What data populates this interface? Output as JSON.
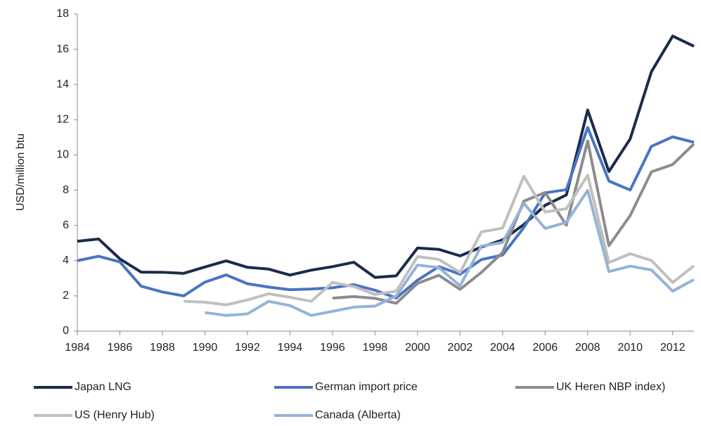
{
  "chart_data": {
    "type": "line",
    "y_label": "USD/million btu",
    "x": [
      1984,
      1985,
      1986,
      1987,
      1988,
      1989,
      1990,
      1991,
      1992,
      1993,
      1994,
      1995,
      1996,
      1997,
      1998,
      1999,
      2000,
      2001,
      2002,
      2003,
      2004,
      2005,
      2006,
      2007,
      2008,
      2009,
      2010,
      2011,
      2012,
      2013
    ],
    "series": [
      {
        "name": "Japan LNG",
        "color": "#1c2b4a",
        "values": [
          5.1,
          5.23,
          4.1,
          3.35,
          3.34,
          3.28,
          3.64,
          3.99,
          3.62,
          3.52,
          3.18,
          3.46,
          3.66,
          3.91,
          3.05,
          3.14,
          4.72,
          4.64,
          4.27,
          4.77,
          5.18,
          6.05,
          7.14,
          7.73,
          12.55,
          9.06,
          10.91,
          14.73,
          16.75,
          16.17
        ]
      },
      {
        "name": "German import price",
        "color": "#4a74c2",
        "values": [
          4.0,
          4.25,
          3.93,
          2.55,
          2.22,
          2.0,
          2.78,
          3.19,
          2.69,
          2.5,
          2.35,
          2.39,
          2.46,
          2.64,
          2.32,
          1.88,
          2.89,
          3.66,
          3.23,
          4.06,
          4.32,
          5.88,
          7.85,
          8.03,
          11.56,
          8.52,
          8.01,
          10.49,
          11.03,
          10.72
        ]
      },
      {
        "name": "UK Heren NBP index)",
        "color": "#8c8c8c",
        "values": [
          null,
          null,
          null,
          null,
          null,
          null,
          null,
          null,
          null,
          null,
          null,
          null,
          1.87,
          1.96,
          1.86,
          1.58,
          2.71,
          3.17,
          2.37,
          3.33,
          4.46,
          7.38,
          7.87,
          6.01,
          10.79,
          4.85,
          6.56,
          9.04,
          9.46,
          10.63
        ]
      },
      {
        "name": "US (Henry Hub)",
        "color": "#bfbfbf",
        "values": [
          null,
          null,
          null,
          null,
          null,
          1.69,
          1.64,
          1.49,
          1.77,
          2.12,
          1.92,
          1.69,
          2.76,
          2.53,
          2.08,
          2.27,
          4.23,
          4.07,
          3.33,
          5.63,
          5.85,
          8.79,
          6.76,
          6.95,
          8.85,
          3.89,
          4.39,
          4.01,
          2.76,
          3.71
        ]
      },
      {
        "name": "Canada (Alberta)",
        "color": "#95b3d7",
        "values": [
          null,
          null,
          null,
          null,
          null,
          null,
          1.05,
          0.89,
          0.98,
          1.69,
          1.45,
          0.89,
          1.12,
          1.36,
          1.42,
          2.0,
          3.75,
          3.61,
          2.57,
          4.83,
          5.03,
          7.25,
          5.83,
          6.17,
          7.99,
          3.38,
          3.69,
          3.47,
          2.27,
          2.93
        ]
      }
    ],
    "xlim": [
      1984,
      2013
    ],
    "xticks": [
      1984,
      1986,
      1988,
      1990,
      1992,
      1994,
      1996,
      1998,
      2000,
      2002,
      2004,
      2006,
      2008,
      2010,
      2012
    ],
    "ylim": [
      0,
      18
    ],
    "yticks": [
      0,
      2,
      4,
      6,
      8,
      10,
      12,
      14,
      16,
      18
    ],
    "grid": false,
    "legend": "bottom"
  }
}
